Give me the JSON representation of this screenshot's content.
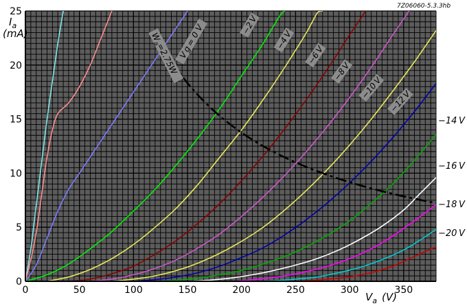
{
  "reference": "7Z06060-5.3.3hb",
  "chart_data": {
    "type": "line",
    "xlabel_main": "V",
    "xlabel_sub": "a",
    "xlabel_unit": "(V)",
    "ylabel_main": "I",
    "ylabel_sub": "a",
    "ylabel_unit": "(mA)",
    "xlim": [
      0,
      380
    ],
    "ylim": [
      0,
      25
    ],
    "xticks": [
      "0",
      "50",
      "100",
      "150",
      "200",
      "250",
      "300",
      "350"
    ],
    "yticks": [
      "0",
      "5",
      "10",
      "15",
      "20",
      "25"
    ],
    "grid": true,
    "background": "#5c5c5c",
    "grid_color": "#000000",
    "series": [
      {
        "name": "",
        "color": "#7fe5e5",
        "points": [
          [
            0,
            0
          ],
          [
            5,
            3
          ],
          [
            10,
            7
          ],
          [
            15,
            11
          ],
          [
            20,
            15
          ],
          [
            25,
            18.5
          ],
          [
            30,
            22
          ],
          [
            35,
            25
          ]
        ]
      },
      {
        "name": "",
        "color": "#ff8c8c",
        "points": [
          [
            0,
            0
          ],
          [
            5,
            2
          ],
          [
            10,
            4.5
          ],
          [
            15,
            8
          ],
          [
            20,
            11.5
          ],
          [
            25,
            14
          ],
          [
            30,
            15.5
          ],
          [
            40,
            16.5
          ],
          [
            50,
            18
          ],
          [
            60,
            20
          ],
          [
            70,
            22.5
          ],
          [
            80,
            25
          ]
        ]
      },
      {
        "name": "",
        "color": "#7a7aff",
        "points": [
          [
            0,
            0
          ],
          [
            10,
            1.5
          ],
          [
            20,
            4
          ],
          [
            30,
            6.5
          ],
          [
            40,
            8.5
          ],
          [
            50,
            10
          ],
          [
            60,
            11.5
          ],
          [
            80,
            14.5
          ],
          [
            100,
            17.5
          ],
          [
            120,
            20.5
          ],
          [
            140,
            23.5
          ],
          [
            150,
            25
          ]
        ]
      },
      {
        "name": "0 V",
        "color": "#00ee00",
        "points": [
          [
            0,
            0
          ],
          [
            20,
            0.6
          ],
          [
            40,
            1.6
          ],
          [
            60,
            3
          ],
          [
            80,
            4.6
          ],
          [
            100,
            6.5
          ],
          [
            120,
            8.5
          ],
          [
            140,
            10.8
          ],
          [
            160,
            13.3
          ],
          [
            180,
            16
          ],
          [
            200,
            19
          ],
          [
            220,
            22
          ],
          [
            235,
            24.5
          ],
          [
            240,
            25
          ]
        ]
      },
      {
        "name": "-2 V",
        "color": "#e8e85a",
        "points": [
          [
            20,
            0
          ],
          [
            40,
            0.4
          ],
          [
            60,
            1.1
          ],
          [
            80,
            2.1
          ],
          [
            100,
            3.4
          ],
          [
            120,
            5
          ],
          [
            140,
            6.8
          ],
          [
            160,
            9
          ],
          [
            180,
            11.5
          ],
          [
            200,
            14
          ],
          [
            220,
            16.8
          ],
          [
            240,
            19.8
          ],
          [
            260,
            23
          ],
          [
            270,
            24.8
          ],
          [
            275,
            25
          ]
        ]
      },
      {
        "name": "-4 V",
        "color": "#8b0000",
        "points": [
          [
            40,
            0
          ],
          [
            60,
            0.2
          ],
          [
            80,
            0.7
          ],
          [
            100,
            1.4
          ],
          [
            120,
            2.5
          ],
          [
            140,
            3.8
          ],
          [
            160,
            5.4
          ],
          [
            180,
            7.2
          ],
          [
            200,
            9.3
          ],
          [
            220,
            11.6
          ],
          [
            240,
            14.1
          ],
          [
            260,
            16.8
          ],
          [
            280,
            19.7
          ],
          [
            300,
            22.8
          ],
          [
            315,
            25
          ]
        ]
      },
      {
        "name": "-6 V",
        "color": "#cc55cc",
        "points": [
          [
            60,
            0
          ],
          [
            80,
            0.2
          ],
          [
            100,
            0.6
          ],
          [
            120,
            1.2
          ],
          [
            140,
            2
          ],
          [
            160,
            3.1
          ],
          [
            180,
            4.4
          ],
          [
            200,
            6
          ],
          [
            220,
            7.8
          ],
          [
            240,
            9.8
          ],
          [
            260,
            12
          ],
          [
            280,
            14.4
          ],
          [
            300,
            17
          ],
          [
            320,
            19.8
          ],
          [
            340,
            22.8
          ],
          [
            355,
            25
          ]
        ]
      },
      {
        "name": "-8 V",
        "color": "#e8e85a",
        "points": [
          [
            80,
            0
          ],
          [
            100,
            0.2
          ],
          [
            120,
            0.5
          ],
          [
            140,
            1
          ],
          [
            160,
            1.7
          ],
          [
            180,
            2.6
          ],
          [
            200,
            3.7
          ],
          [
            220,
            5
          ],
          [
            240,
            6.6
          ],
          [
            260,
            8.4
          ],
          [
            280,
            10.4
          ],
          [
            300,
            12.6
          ],
          [
            320,
            15
          ],
          [
            340,
            17.6
          ],
          [
            360,
            20.3
          ],
          [
            380,
            23.2
          ]
        ]
      },
      {
        "name": "-10 V",
        "color": "#0000aa",
        "points": [
          [
            100,
            0
          ],
          [
            120,
            0.15
          ],
          [
            140,
            0.4
          ],
          [
            160,
            0.8
          ],
          [
            180,
            1.4
          ],
          [
            200,
            2.2
          ],
          [
            220,
            3.1
          ],
          [
            240,
            4.3
          ],
          [
            260,
            5.7
          ],
          [
            280,
            7.3
          ],
          [
            300,
            9.1
          ],
          [
            320,
            11.1
          ],
          [
            340,
            13.3
          ],
          [
            360,
            15.7
          ],
          [
            380,
            18.3
          ]
        ]
      },
      {
        "name": "-12 V",
        "color": "#00aa00",
        "points": [
          [
            120,
            0
          ],
          [
            140,
            0.1
          ],
          [
            160,
            0.3
          ],
          [
            180,
            0.6
          ],
          [
            200,
            1
          ],
          [
            220,
            1.6
          ],
          [
            240,
            2.3
          ],
          [
            260,
            3.2
          ],
          [
            280,
            4.3
          ],
          [
            300,
            5.6
          ],
          [
            320,
            7.2
          ],
          [
            340,
            9
          ],
          [
            360,
            11.2
          ],
          [
            380,
            13.6
          ]
        ]
      },
      {
        "name": "-14 V",
        "color": "#ffffff",
        "points": [
          [
            150,
            0
          ],
          [
            170,
            0.1
          ],
          [
            190,
            0.3
          ],
          [
            210,
            0.6
          ],
          [
            230,
            1
          ],
          [
            250,
            1.5
          ],
          [
            270,
            2.1
          ],
          [
            290,
            2.9
          ],
          [
            310,
            3.9
          ],
          [
            330,
            5.1
          ],
          [
            350,
            6.6
          ],
          [
            365,
            8.1
          ],
          [
            380,
            9.6
          ]
        ]
      },
      {
        "name": "-16 V",
        "color": "#ff00ff",
        "points": [
          [
            180,
            0
          ],
          [
            200,
            0.05
          ],
          [
            220,
            0.25
          ],
          [
            240,
            0.5
          ],
          [
            260,
            0.9
          ],
          [
            280,
            1.4
          ],
          [
            300,
            2.1
          ],
          [
            320,
            3
          ],
          [
            340,
            4.2
          ],
          [
            360,
            5.6
          ],
          [
            380,
            7.1
          ]
        ]
      },
      {
        "name": "-18 V",
        "color": "#00cccc",
        "points": [
          [
            210,
            0
          ],
          [
            230,
            0.05
          ],
          [
            250,
            0.2
          ],
          [
            270,
            0.4
          ],
          [
            290,
            0.8
          ],
          [
            310,
            1.3
          ],
          [
            330,
            2
          ],
          [
            350,
            2.9
          ],
          [
            365,
            3.8
          ],
          [
            380,
            4.8
          ]
        ]
      },
      {
        "name": "-20 V",
        "color": "#cc0000",
        "points": [
          [
            240,
            0
          ],
          [
            260,
            0.05
          ],
          [
            280,
            0.2
          ],
          [
            300,
            0.4
          ],
          [
            320,
            0.8
          ],
          [
            340,
            1.4
          ],
          [
            360,
            2.3
          ],
          [
            380,
            3.2
          ]
        ]
      }
    ],
    "power_curve": {
      "name": "W_a = 2.75 W",
      "label_main": "W",
      "label_sub": "a",
      "label_value": "=2.75W",
      "watts": 2.75,
      "color": "#000000",
      "x_from": 125,
      "x_to": 380
    },
    "curve_labels_inside": [
      "V g = 0 V",
      "−2 V",
      "−4 V",
      "−6 V",
      "−8 V",
      "−10 V",
      "−12 V"
    ],
    "curve_labels_right": [
      "−14 V",
      "−16 V",
      "−18 V",
      "−20 V"
    ]
  }
}
